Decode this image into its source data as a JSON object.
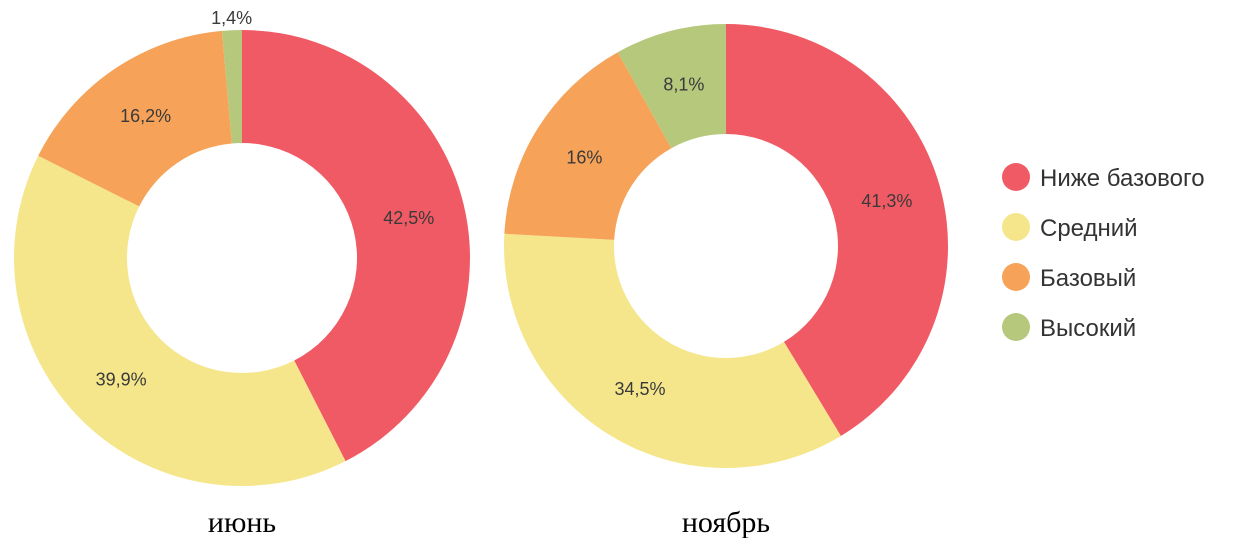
{
  "chart_data": [
    {
      "type": "donut",
      "caption": "июнь",
      "categories": [
        "Ниже базового",
        "Средний",
        "Базовый",
        "Высокий"
      ],
      "values": [
        42.5,
        39.9,
        16.2,
        1.4
      ],
      "labels": [
        "42,5%",
        "39,9%",
        "16,2%",
        "1,4%"
      ],
      "start": "top",
      "direction": "clockwise"
    },
    {
      "type": "donut",
      "caption": "ноябрь",
      "categories": [
        "Ниже базового",
        "Средний",
        "Базовый",
        "Высокий"
      ],
      "values": [
        41.3,
        34.5,
        16.0,
        8.1
      ],
      "labels": [
        "41,3%",
        "34,5%",
        "16%",
        "8,1%"
      ],
      "start": "top",
      "direction": "clockwise"
    }
  ],
  "legend": {
    "placement": "right",
    "items": [
      {
        "label": "Ниже базового",
        "color": "#f05a64"
      },
      {
        "label": "Средний",
        "color": "#f5e68c"
      },
      {
        "label": "Базовый",
        "color": "#f6a359"
      },
      {
        "label": "Высокий",
        "color": "#b6c87c"
      }
    ]
  }
}
